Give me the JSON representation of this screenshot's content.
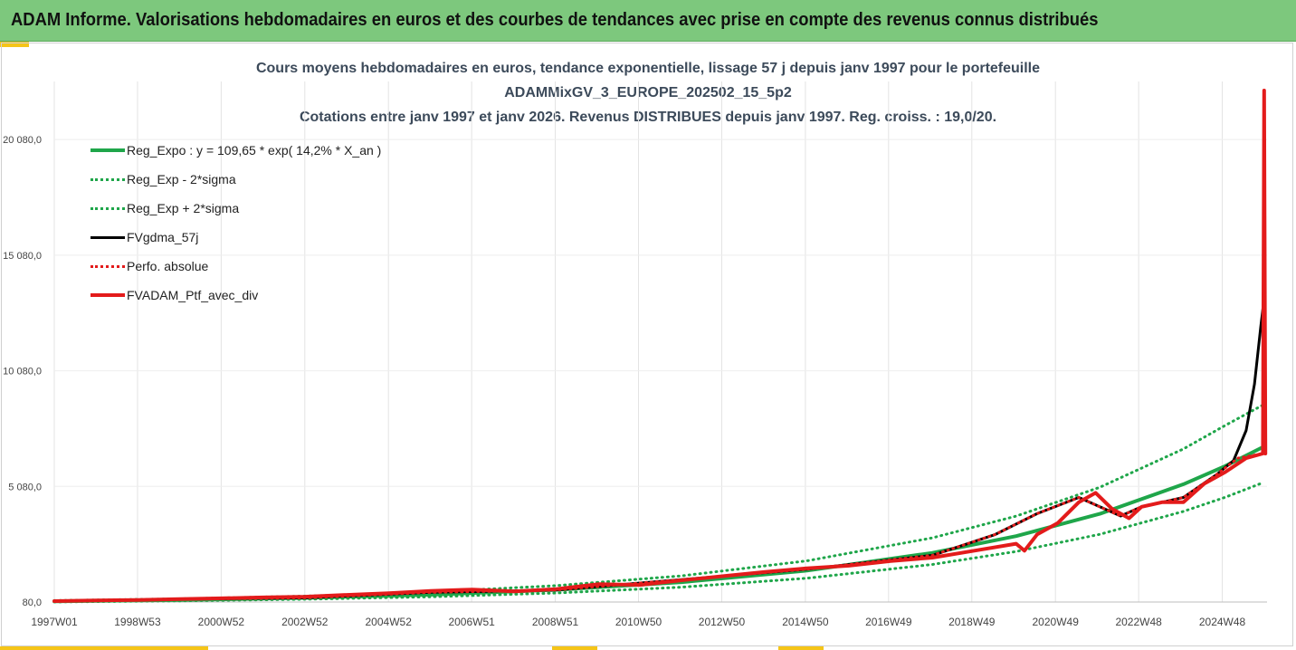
{
  "banner": {
    "title": "ADAM Informe. Valorisations hebdomadaires en euros et des courbes de tendances avec prise en compte des revenus connus distribués"
  },
  "chart_data": {
    "type": "line",
    "title": [
      "Cours moyens hebdomadaires  en euros, tendance exponentielle, lissage 57 j depuis janv 1997 pour le portefeuille",
      "ADAMMixGV_3_EUROPE_202502_15_5p2",
      "Cotations entre janv 1997 et janv 2026. Revenus DISTRIBUES depuis janv 1997. Reg. croiss. : 19,0/20."
    ],
    "xlabel": "",
    "ylabel": "",
    "ylim": [
      80,
      22200
    ],
    "xlim": [
      1997.0,
      2026.0
    ],
    "y_ticks": [
      80,
      5080,
      10080,
      15080,
      20080
    ],
    "y_tick_labels": [
      "80,0",
      "5 080,0",
      "10 080,0",
      "15 080,0",
      "20 080,0"
    ],
    "x_ticks": [
      1997.0,
      1998.99,
      2000.99,
      2002.99,
      2004.99,
      2006.98,
      2008.98,
      2010.97,
      2012.96,
      2014.96,
      2016.95,
      2018.94,
      2020.94,
      2022.93,
      2024.93
    ],
    "x_tick_labels": [
      "1997W01",
      "1998W53",
      "2000W52",
      "2002W52",
      "2004W52",
      "2006W51",
      "2008W51",
      "2010W50",
      "2012W50",
      "2014W50",
      "2016W49",
      "2018W49",
      "2020W49",
      "2022W48",
      "2024W48"
    ],
    "grid": "vertical",
    "legend_position": "top-left",
    "series": [
      {
        "name": "Reg_Expo : y = 109,65 * exp( 14,2% *  X_an )",
        "color": "#1fa64a",
        "style": "solid",
        "width": 4,
        "x": [
          1997,
          2000,
          2003,
          2006,
          2009,
          2012,
          2015,
          2018,
          2020,
          2022,
          2024,
          2025,
          2025.9
        ],
        "y": [
          110,
          168,
          259,
          397,
          610,
          936,
          1437,
          2207,
          2931,
          3894,
          5174,
          5960,
          6780
        ]
      },
      {
        "name": "Reg_Exp - 2*sigma",
        "color": "#1fa64a",
        "style": "dotted",
        "width": 3,
        "x": [
          1997,
          2000,
          2003,
          2006,
          2009,
          2012,
          2015,
          2018,
          2020,
          2022,
          2024,
          2025,
          2025.9
        ],
        "y": [
          85,
          130,
          200,
          307,
          471,
          723,
          1110,
          1705,
          2265,
          3010,
          4000,
          4610,
          5240
        ]
      },
      {
        "name": "Reg_Exp + 2*sigma",
        "color": "#1fa64a",
        "style": "dotted",
        "width": 3,
        "x": [
          1997,
          2000,
          2003,
          2006,
          2009,
          2012,
          2015,
          2018,
          2020,
          2022,
          2024,
          2025,
          2025.9
        ],
        "y": [
          142,
          218,
          335,
          514,
          790,
          1212,
          1861,
          2857,
          3795,
          5042,
          6700,
          7720,
          8600
        ]
      },
      {
        "name": "FVgdma_57j",
        "color": "#000000",
        "style": "solid",
        "width": 3,
        "x": [
          1997,
          2000,
          2003,
          2006,
          2008,
          2009,
          2012,
          2015,
          2018,
          2019.5,
          2020.5,
          2021.5,
          2022,
          2022.5,
          2023,
          2023.5,
          2024,
          2024.8,
          2025.2,
          2025.5,
          2025.7,
          2025.85,
          2025.95
        ],
        "y": [
          120,
          200,
          260,
          500,
          560,
          600,
          1050,
          1500,
          2100,
          3000,
          3900,
          4600,
          4200,
          3800,
          4200,
          4400,
          4600,
          5600,
          6200,
          7500,
          9500,
          12000,
          13500
        ]
      },
      {
        "name": "Perfo. absolue",
        "color": "#e31b1b",
        "style": "dotted",
        "width": 3,
        "x": [
          1997,
          2000,
          2003,
          2006,
          2008,
          2009,
          2012,
          2015,
          2018,
          2019.5,
          2020.5,
          2021.5,
          2022,
          2022.5,
          2023,
          2023.5,
          2024,
          2024.8,
          2025.3,
          2025.9
        ],
        "y": [
          120,
          200,
          260,
          500,
          560,
          600,
          1050,
          1500,
          2100,
          3000,
          3900,
          4600,
          4200,
          3800,
          4200,
          4400,
          4600,
          5600,
          6300,
          6500
        ]
      },
      {
        "name": "FVADAM_Ptf_avec_div",
        "color": "#e31b1b",
        "style": "solid",
        "width": 4,
        "x": [
          1997,
          1998,
          1999,
          2000,
          2001,
          2002,
          2003,
          2004,
          2005,
          2006,
          2007,
          2008,
          2009,
          2010,
          2011,
          2012,
          2013,
          2014,
          2015,
          2016,
          2017,
          2018,
          2019,
          2020,
          2020.2,
          2020.5,
          2021,
          2021.5,
          2021.9,
          2022.3,
          2022.7,
          2023,
          2023.5,
          2024,
          2024.5,
          2025,
          2025.5,
          2025.9,
          2025.93,
          2025.96
        ],
        "y": [
          120,
          150,
          170,
          210,
          240,
          280,
          310,
          390,
          460,
          560,
          620,
          540,
          640,
          850,
          820,
          1020,
          1200,
          1380,
          1540,
          1650,
          1850,
          2000,
          2300,
          2600,
          2300,
          3000,
          3500,
          4400,
          4800,
          4100,
          3700,
          4200,
          4400,
          4400,
          5200,
          5700,
          6300,
          6500,
          22200,
          6500
        ]
      }
    ]
  }
}
